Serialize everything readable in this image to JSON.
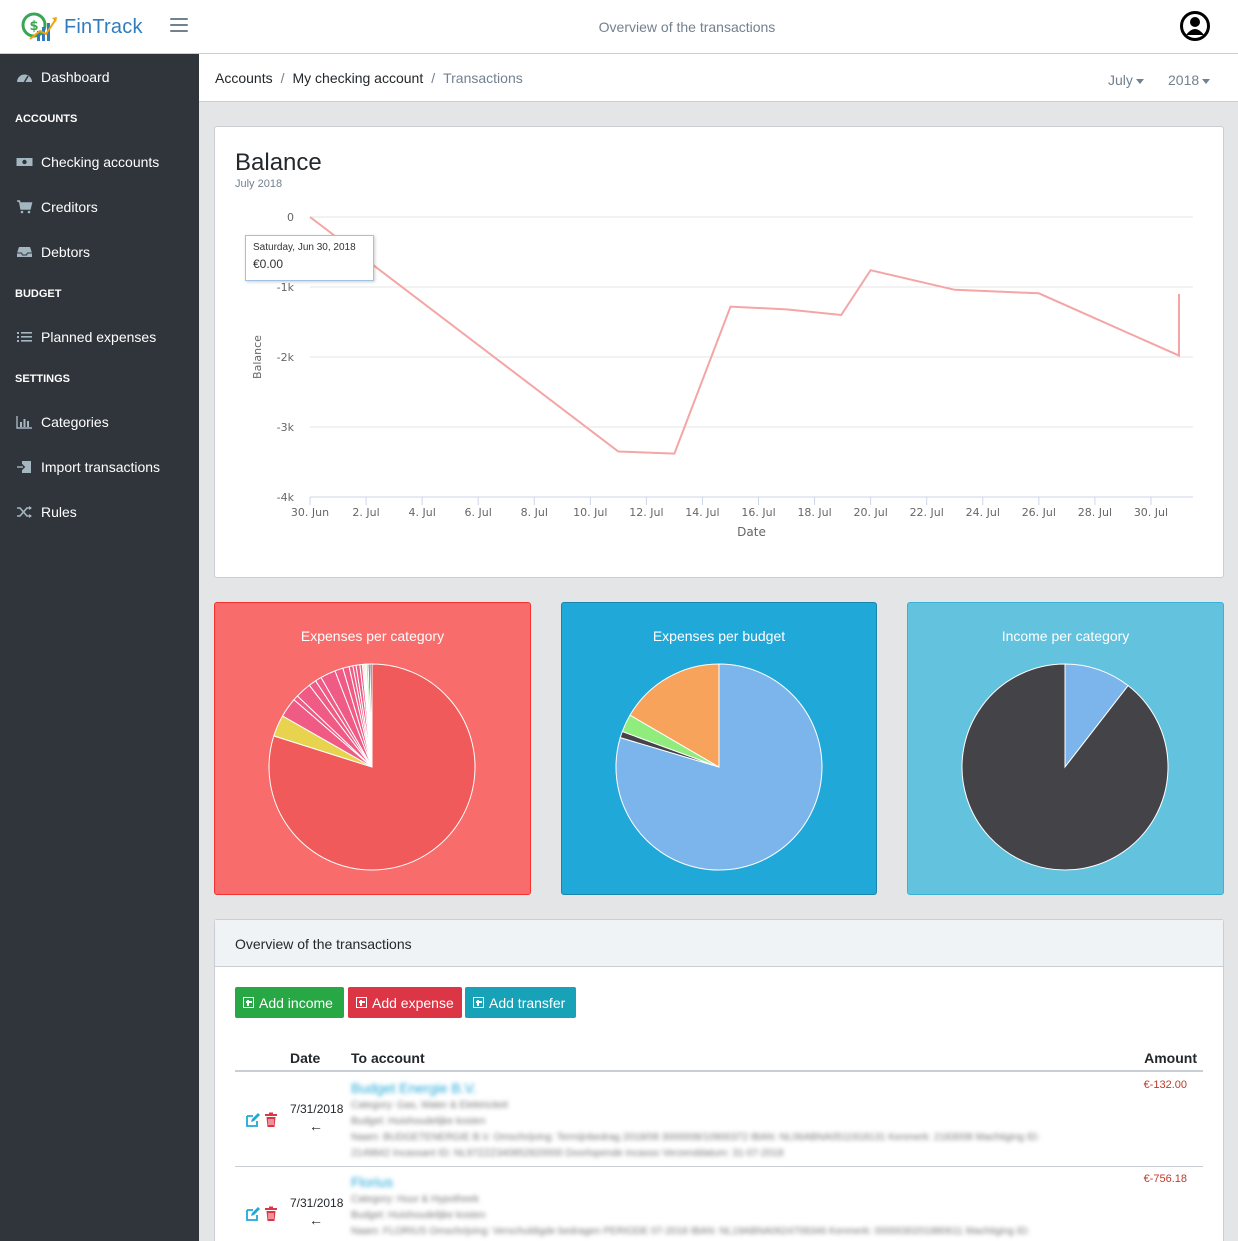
{
  "app": {
    "name": "FinTrack",
    "header_title": "Overview of the transactions"
  },
  "sidebar": {
    "dashboard": "Dashboard",
    "sections": {
      "accounts": "ACCOUNTS",
      "budget": "BUDGET",
      "settings": "SETTINGS"
    },
    "items": {
      "checking": "Checking accounts",
      "creditors": "Creditors",
      "debtors": "Debtors",
      "planned": "Planned expenses",
      "categories": "Categories",
      "import": "Import transactions",
      "rules": "Rules"
    }
  },
  "breadcrumb": {
    "accounts": "Accounts",
    "checking": "My checking account",
    "transactions": "Transactions",
    "sep": "/",
    "month": "July",
    "year": "2018"
  },
  "balance": {
    "title": "Balance",
    "subtitle": "July 2018",
    "tooltip_date": "Saturday, Jun 30, 2018",
    "tooltip_value": "€0.00"
  },
  "chart_data": [
    {
      "type": "line",
      "title": "Balance",
      "subtitle": "July 2018",
      "xlabel": "Date",
      "ylabel": "Balance",
      "ylim": [
        -4000,
        0
      ],
      "yticks": [
        "0",
        "-1k",
        "-2k",
        "-3k",
        "-4k"
      ],
      "xticks": [
        "30. Jun",
        "2. Jul",
        "4. Jul",
        "6. Jul",
        "8. Jul",
        "10. Jul",
        "12. Jul",
        "14. Jul",
        "16. Jul",
        "18. Jul",
        "20. Jul",
        "22. Jul",
        "24. Jul",
        "26. Jul",
        "28. Jul",
        "30. Jul"
      ],
      "x": [
        0,
        11,
        13,
        15,
        17,
        18.95,
        20,
        23,
        26,
        31,
        31
      ],
      "y": [
        0,
        -3350,
        -3380,
        -1280,
        -1320,
        -1400,
        -760,
        -1040,
        -1090,
        -1980,
        -1100
      ],
      "color": "#f4a5a5"
    },
    {
      "type": "pie",
      "title": "Expenses per category",
      "values": [
        80.6,
        3.4,
        3.1,
        0.8,
        2.5,
        1.2,
        1.0,
        2.4,
        1.3,
        1.0,
        0.6,
        0.5,
        0.6,
        0.4,
        0.2,
        0.2,
        0.2,
        0.3,
        0.3,
        0.3
      ],
      "colors": [
        "#f05a5a",
        "#e8d34e",
        "#ef5b84",
        "#ef5b84",
        "#ef5b84",
        "#ef5b84",
        "#ef5b84",
        "#ef5b84",
        "#ef5b84",
        "#ef5b84",
        "#ef5b84",
        "#ef5b84",
        "#ef5b84",
        "#ef5b84",
        "#8085e9",
        "#f7a35c",
        "#90ed7d",
        "#90ed7d",
        "#434348",
        "#434348"
      ]
    },
    {
      "type": "pie",
      "title": "Expenses per budget",
      "values": [
        79.6,
        1.0,
        2.8,
        16.6
      ],
      "colors": [
        "#7cb5ec",
        "#434348",
        "#90ed7d",
        "#f7a35c"
      ]
    },
    {
      "type": "pie",
      "title": "Income per category",
      "values": [
        10.5,
        89.5
      ],
      "colors": [
        "#7cb5ec",
        "#434348"
      ]
    }
  ],
  "pies": {
    "expenses_category": "Expenses per category",
    "expenses_budget": "Expenses per budget",
    "income_category": "Income per category"
  },
  "transactions": {
    "title": "Overview of the transactions",
    "buttons": {
      "income": "Add income",
      "expense": "Add expense",
      "transfer": "Add transfer"
    },
    "columns": {
      "date": "Date",
      "to_account": "To account",
      "amount": "Amount"
    },
    "rows": [
      {
        "date": "7/31/2018",
        "arrow": "←",
        "account": "Budget Energie B.V.",
        "category": "Category: Gas, Water & Elektriciteit",
        "budget": "Budget: Huishoudelijke kosten",
        "desc1": "Naam: BUDGETENERGIE B.V. Omschrijving: Termijnbedrag 2018/08 3000008/10900372 IBAN: NL06ABNA0511918131 Kenmerk: 2183008 Machtiging ID:",
        "desc2": "2149842 Incassant ID: NL97ZZZ340852820000 Doorlopende incasso Verzenddatum: 31-07-2018",
        "amount": "€-132.00"
      },
      {
        "date": "7/31/2018",
        "arrow": "←",
        "account": "Florius",
        "category": "Category: Huur & Hypotheek",
        "budget": "Budget: Huishoudelijke kosten",
        "desc1": "Naam: FLORIUS Omschrijving: Verschuldigde bedragen PERIODE 07-2018 IBAN: NL19ABNA0624709346 Kenmerk: 0000030201880611 Machtiging ID:",
        "desc2": "",
        "amount": "€-756.18"
      }
    ]
  },
  "colors": {
    "sidebar_bg": "#2f353a",
    "expenses_card": "#f86c6b",
    "budget_card": "#20a8d8",
    "income_card": "#63c2de",
    "btn_income": "#28a745",
    "btn_expense": "#dc3545",
    "btn_transfer": "#17a2b8",
    "line": "#f4a5a5"
  },
  "icons": [
    "dashboard-icon",
    "money-icon",
    "cart-icon",
    "inbox-icon",
    "list-icon",
    "bar-chart-icon",
    "import-icon",
    "shuffle-icon",
    "hamburger-icon",
    "user-icon",
    "edit-icon",
    "trash-icon",
    "plus-square-icon"
  ]
}
